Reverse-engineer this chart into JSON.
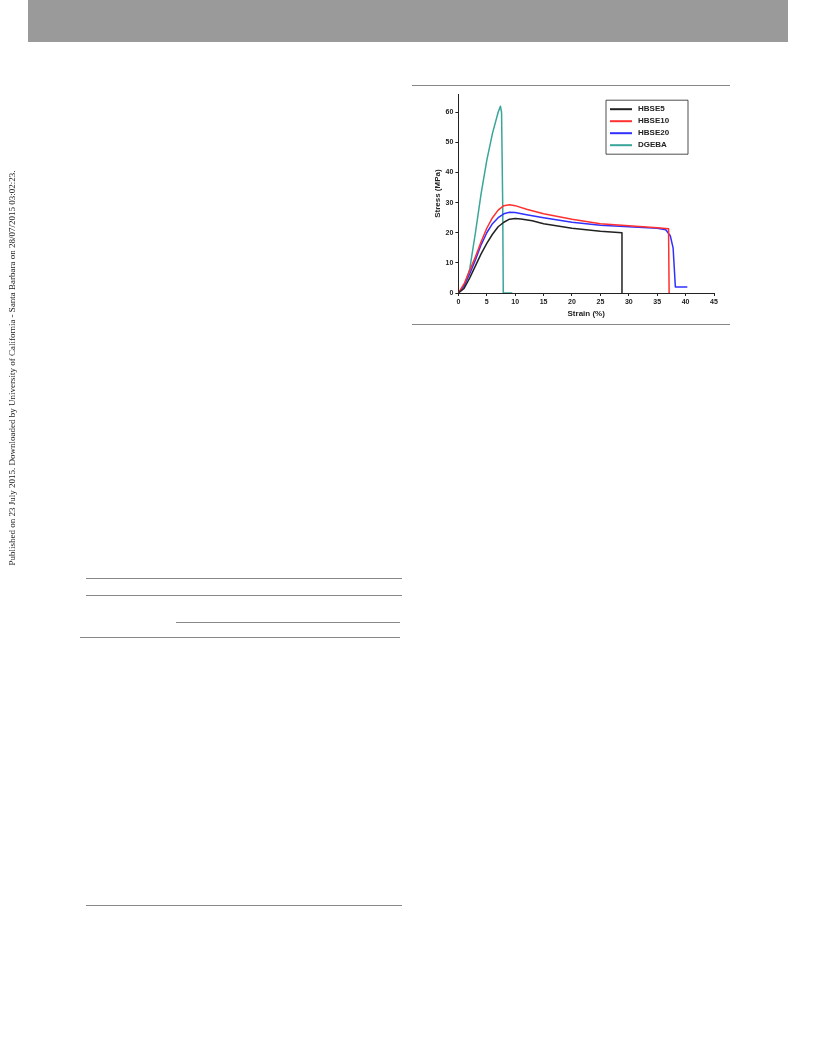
{
  "chart_data": {
    "type": "line",
    "xlabel": "Strain (%)",
    "ylabel": "Stress (MPa)",
    "xlim": [
      0,
      45
    ],
    "xticks": [
      0,
      5,
      10,
      15,
      20,
      25,
      30,
      35,
      40,
      45
    ],
    "ylim": [
      0,
      66
    ],
    "yticks": [
      0,
      10,
      20,
      30,
      40,
      50,
      60
    ],
    "grid": false,
    "legend": "top right",
    "marker": "none",
    "line_style": "solid",
    "annotations": [
      "Published on 23 July 2015. Downloaded by University of California - Santa Barbara on 28/07/2015 03:02:23."
    ],
    "series": [
      {
        "name": "HBSE5",
        "color": "#222222",
        "x": [
          0,
          1,
          2,
          3,
          4,
          5,
          6,
          7,
          8,
          9,
          10,
          11,
          13,
          15,
          20,
          25,
          28.8,
          28.8
        ],
        "values": [
          0,
          1.5,
          5,
          9,
          13,
          16.5,
          19.5,
          22,
          23.5,
          24.5,
          24.7,
          24.6,
          24,
          23,
          21.5,
          20.5,
          20,
          0
        ]
      },
      {
        "name": "HBSE10",
        "color": "#ff3030",
        "x": [
          0,
          1,
          2,
          3,
          4,
          5,
          6,
          7,
          8,
          9,
          10,
          12,
          15,
          20,
          25,
          30,
          35,
          37,
          37.1
        ],
        "values": [
          0,
          3,
          7.5,
          12,
          17,
          21.5,
          25,
          27.5,
          29,
          29.3,
          29,
          27.8,
          26.3,
          24.5,
          23,
          22.3,
          21.7,
          21.3,
          0
        ]
      },
      {
        "name": "HBSE20",
        "color": "#3030ff",
        "x": [
          0,
          1,
          2,
          3,
          4,
          5,
          6,
          7,
          8,
          9,
          10,
          12,
          15,
          20,
          25,
          30,
          35,
          36.5,
          37.3,
          37.8,
          38.2,
          40.3
        ],
        "values": [
          0,
          2.4,
          6.4,
          11,
          16,
          20,
          23,
          25,
          26.3,
          26.8,
          26.7,
          26,
          25,
          23.5,
          22.5,
          22,
          21.5,
          21,
          19,
          15,
          2,
          2
        ]
      },
      {
        "name": "DGEBA",
        "color": "#3aa59a",
        "x": [
          0,
          1,
          2,
          3,
          4,
          5,
          6,
          7,
          7.4,
          7.6,
          7.8,
          7.9,
          9.5
        ],
        "values": [
          0,
          2,
          8,
          20,
          33,
          44,
          53,
          60,
          62,
          60,
          30,
          0,
          0
        ]
      }
    ]
  }
}
